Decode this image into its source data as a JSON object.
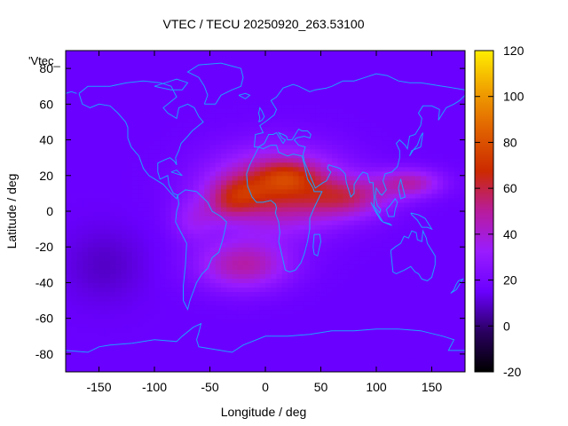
{
  "chart_data": {
    "type": "heatmap",
    "title": "VTEC / TECU 20250920_263.53100",
    "xlabel": "Longitude / deg",
    "ylabel": "Latitude / deg",
    "xlim": [
      -180,
      180
    ],
    "ylim": [
      -90,
      90
    ],
    "x_ticks": [
      -150,
      -100,
      -50,
      0,
      50,
      100,
      150
    ],
    "y_ticks": [
      -80,
      -60,
      -40,
      -20,
      0,
      20,
      40,
      60,
      80
    ],
    "colorbar": {
      "range": [
        -20,
        120
      ],
      "ticks": [
        -20,
        0,
        20,
        40,
        60,
        80,
        100,
        120
      ],
      "stops": [
        "#000000",
        "#2a0060",
        "#6a00ff",
        "#9a1cff",
        "#b81c9c",
        "#cc2a00",
        "#e06000",
        "#f0a000",
        "#ffee00"
      ]
    },
    "series_label": "'Vtec_",
    "background_value": 15,
    "features": [
      {
        "name": "equatorial-anomaly-north-africa",
        "lon": 20,
        "lat": 20,
        "peak": 82
      },
      {
        "name": "equatorial-anomaly-atlantic",
        "lon": -25,
        "lat": 8,
        "peak": 80
      },
      {
        "name": "equatorial-band-indian-ocean",
        "lon": 90,
        "lat": 10,
        "peak": 58
      },
      {
        "name": "southern-crest-south-atlantic",
        "lon": -20,
        "lat": -30,
        "peak": 55
      },
      {
        "name": "tail-pacific",
        "lon": 140,
        "lat": 18,
        "peak": 50
      }
    ]
  }
}
